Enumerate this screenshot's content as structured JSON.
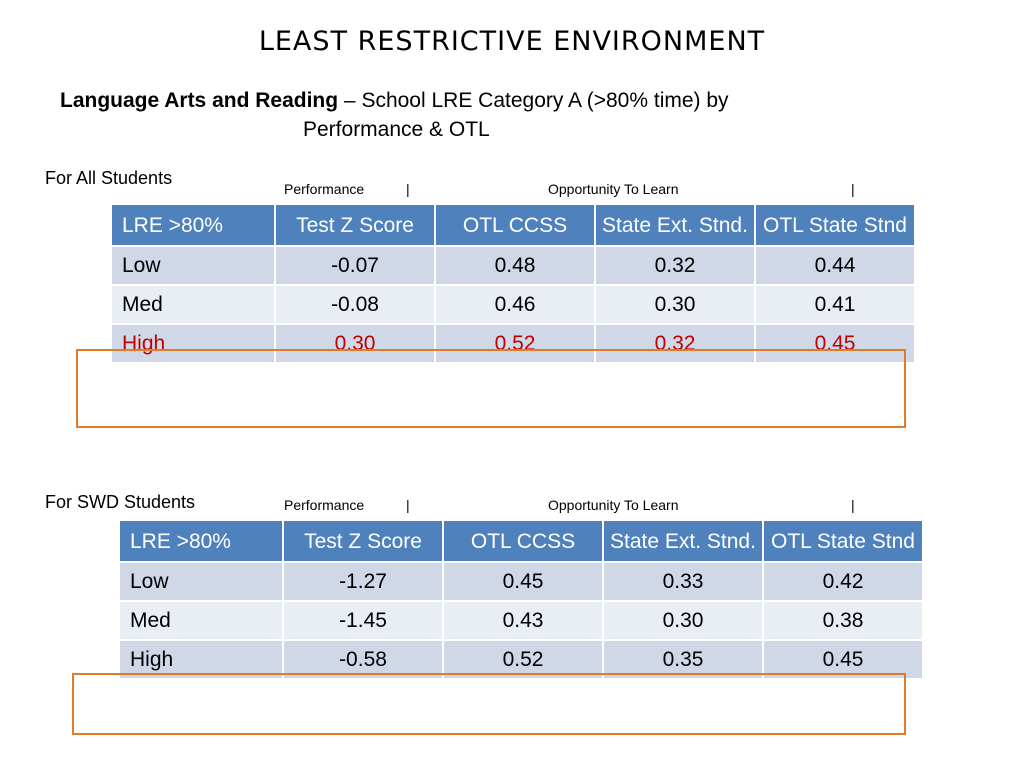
{
  "title": "LEAST RESTRICTIVE ENVIRONMENT",
  "subtitle": {
    "bold": "Language Arts and Reading",
    "rest": " – School LRE Category A (>80% time) by",
    "line2": "Performance & OTL"
  },
  "colors": {
    "header_bg": "#4f81bd",
    "row_odd": "#d0d8e8",
    "row_even": "#e9edf4",
    "highlight_text": "#c00000",
    "highlight_box": "#e07b2a"
  },
  "band": {
    "performance": "Performance",
    "sep1": "|",
    "otl": "Opportunity To Learn",
    "sep2": "|"
  },
  "tables": [
    {
      "label": "For All Students",
      "headers": [
        "LRE >80%",
        "Test Z Score",
        "OTL CCSS",
        "State Ext. Stnd.",
        "OTL State Stnd"
      ],
      "rows": [
        [
          "Low",
          "-0.07",
          "0.48",
          "0.32",
          "0.44"
        ],
        [
          "Med",
          "-0.08",
          "0.46",
          "0.30",
          "0.41"
        ],
        [
          "High",
          "0.30",
          "0.52",
          "0.32",
          "0.45"
        ]
      ],
      "highlighted_row_text_red": true
    },
    {
      "label": "For SWD Students",
      "headers": [
        "LRE >80%",
        "Test Z Score",
        "OTL CCSS",
        "State Ext. Stnd.",
        "OTL State Stnd"
      ],
      "rows": [
        [
          "Low",
          "-1.27",
          "0.45",
          "0.33",
          "0.42"
        ],
        [
          "Med",
          "-1.45",
          "0.43",
          "0.30",
          "0.38"
        ],
        [
          "High",
          "-0.58",
          "0.52",
          "0.35",
          "0.45"
        ]
      ],
      "highlighted_row_text_red": false
    }
  ]
}
